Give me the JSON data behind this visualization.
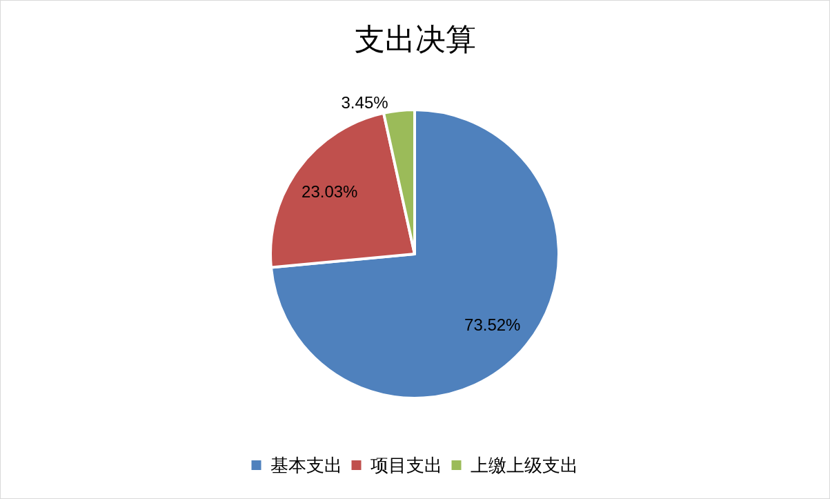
{
  "chart_data": {
    "type": "pie",
    "title": "支出决算",
    "categories": [
      "基本支出",
      "项目支出",
      "上缴上级支出"
    ],
    "values": [
      73.52,
      23.03,
      3.45
    ],
    "colors": [
      "#4f81bd",
      "#c0504d",
      "#9bbb59"
    ],
    "value_labels": [
      "73.52%",
      "23.03%",
      "3.45%"
    ],
    "legend": "bottom"
  }
}
